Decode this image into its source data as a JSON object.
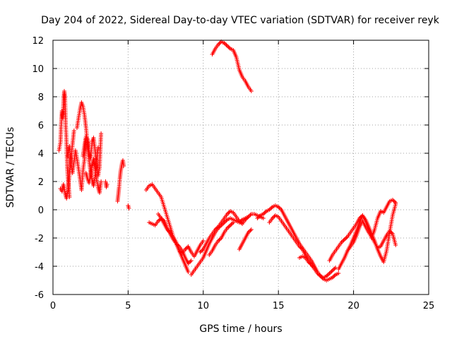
{
  "chart_data": {
    "type": "scatter",
    "title": "Day 204 of 2022, Sidereal Day-to-day VTEC variation (SDTVAR) for receiver reyk",
    "xlabel": "GPS time / hours",
    "ylabel": "SDTVAR / TECUs",
    "xlim": [
      0,
      25
    ],
    "ylim": [
      -6,
      12
    ],
    "xticks": [
      0,
      5,
      10,
      15,
      20,
      25
    ],
    "yticks": [
      -6,
      -4,
      -2,
      0,
      2,
      4,
      6,
      8,
      10,
      12
    ],
    "grid": true,
    "marker": "+",
    "series": [
      {
        "name": "SDTVAR",
        "color": "#ff0000",
        "segments": [
          {
            "x": [
              0.4,
              0.5,
              0.55,
              0.6,
              0.65,
              0.7,
              0.75,
              0.8,
              0.85,
              0.9,
              0.95,
              1.0,
              1.05,
              1.1
            ],
            "y": [
              4.2,
              4.8,
              6.2,
              7.0,
              6.5,
              7.6,
              8.4,
              7.9,
              6.0,
              4.8,
              3.0,
              2.2,
              1.6,
              0.9
            ]
          },
          {
            "x": [
              0.5,
              0.6,
              0.7,
              0.8,
              0.9,
              1.0,
              1.1,
              1.2,
              1.3,
              1.4
            ],
            "y": [
              1.5,
              1.3,
              1.8,
              1.2,
              0.8,
              1.4,
              2.5,
              3.5,
              4.6,
              5.6
            ]
          },
          {
            "x": [
              1.0,
              1.1,
              1.2,
              1.3,
              1.4,
              1.5,
              1.6,
              1.7,
              1.8,
              1.9,
              2.0,
              2.1,
              2.2
            ],
            "y": [
              3.8,
              4.5,
              3.2,
              2.6,
              3.4,
              4.2,
              3.6,
              2.9,
              2.2,
              1.4,
              2.8,
              3.6,
              5.0
            ]
          },
          {
            "x": [
              1.6,
              1.7,
              1.8,
              1.9,
              2.0,
              2.1,
              2.2,
              2.3,
              2.4,
              2.5,
              2.6,
              2.7,
              2.8,
              2.9,
              3.0
            ],
            "y": [
              5.8,
              6.5,
              7.1,
              7.6,
              7.3,
              6.7,
              5.8,
              4.6,
              3.5,
              2.7,
              2.1,
              1.7,
              2.3,
              3.4,
              4.4
            ]
          },
          {
            "x": [
              2.0,
              2.1,
              2.2,
              2.3,
              2.4,
              2.5,
              2.6,
              2.7,
              2.8,
              2.9,
              3.0,
              3.1,
              3.2
            ],
            "y": [
              3.8,
              4.6,
              5.2,
              5.0,
              4.1,
              3.6,
              4.8,
              5.1,
              4.2,
              3.2,
              2.4,
              3.0,
              5.4
            ]
          },
          {
            "x": [
              2.2,
              2.3,
              2.4,
              2.5,
              2.6,
              2.7,
              2.8,
              2.9,
              3.0,
              3.1,
              3.2
            ],
            "y": [
              2.6,
              2.2,
              1.9,
              2.4,
              3.1,
              3.6,
              2.9,
              2.2,
              1.6,
              1.2,
              2.0
            ]
          },
          {
            "x": [
              3.5,
              3.55,
              3.6
            ],
            "y": [
              2.0,
              1.6,
              1.8
            ]
          },
          {
            "x": [
              4.3,
              4.35,
              4.4,
              4.45,
              4.5,
              4.55,
              4.6,
              4.65,
              4.7
            ],
            "y": [
              0.6,
              1.1,
              1.6,
              2.2,
              2.7,
              3.0,
              3.3,
              3.5,
              3.1
            ]
          },
          {
            "x": [
              5.0,
              5.05
            ],
            "y": [
              0.3,
              0.1
            ]
          },
          {
            "x": [
              6.2,
              6.4,
              6.6,
              6.8,
              7.0,
              7.2,
              7.4,
              7.6,
              7.8,
              8.0,
              8.2,
              8.4,
              8.6,
              8.8,
              9.0
            ],
            "y": [
              1.4,
              1.7,
              1.8,
              1.5,
              1.2,
              0.9,
              0.2,
              -0.5,
              -1.2,
              -1.9,
              -2.3,
              -2.9,
              -3.4,
              -3.9,
              -4.4
            ]
          },
          {
            "x": [
              6.4,
              6.6,
              6.8,
              7.0,
              7.2,
              7.4,
              7.6,
              7.8,
              8.0,
              8.2,
              8.4,
              8.6,
              8.8,
              9.0,
              9.2,
              9.4,
              9.6,
              9.8,
              10.0
            ],
            "y": [
              -0.9,
              -1.0,
              -1.1,
              -0.8,
              -0.6,
              -1.0,
              -1.4,
              -1.6,
              -2.0,
              -2.4,
              -2.9,
              -3.1,
              -2.8,
              -2.6,
              -3.0,
              -3.3,
              -2.9,
              -2.5,
              -2.2
            ]
          },
          {
            "x": [
              7.0,
              7.2,
              7.4,
              7.6,
              7.8,
              8.0,
              8.2,
              8.4,
              8.6,
              8.8,
              9.0,
              9.2
            ],
            "y": [
              -0.3,
              -0.6,
              -0.8,
              -1.3,
              -1.7,
              -2.1,
              -2.4,
              -2.6,
              -2.9,
              -3.4,
              -3.8,
              -3.6
            ]
          },
          {
            "x": [
              9.2,
              9.4,
              9.6,
              9.8,
              10.0,
              10.2,
              10.4,
              10.6,
              10.8,
              11.0,
              11.2,
              11.4,
              11.6,
              11.8,
              12.0,
              12.2,
              12.4,
              12.6,
              12.8,
              13.0,
              13.2,
              13.4,
              13.6,
              13.8,
              14.0
            ],
            "y": [
              -4.6,
              -4.3,
              -4.0,
              -3.7,
              -3.4,
              -2.9,
              -2.4,
              -2.0,
              -1.6,
              -1.3,
              -1.1,
              -0.9,
              -0.7,
              -0.6,
              -0.7,
              -0.8,
              -0.9,
              -0.7,
              -0.6,
              -0.5,
              -0.3,
              -0.3,
              -0.4,
              -0.5,
              -0.6
            ]
          },
          {
            "x": [
              9.8,
              10.0,
              10.2,
              10.4,
              10.6,
              10.8,
              11.0,
              11.2,
              11.4,
              11.6,
              11.8,
              12.0,
              12.2,
              12.4,
              12.6,
              12.8,
              13.0
            ],
            "y": [
              -3.0,
              -2.8,
              -2.4,
              -2.0,
              -1.7,
              -1.4,
              -1.2,
              -0.9,
              -0.6,
              -0.3,
              -0.1,
              -0.2,
              -0.5,
              -0.8,
              -1.0,
              -0.7,
              -0.5
            ]
          },
          {
            "x": [
              10.4,
              10.6,
              10.8,
              11.0,
              11.2,
              11.4,
              11.6,
              11.8,
              12.0
            ],
            "y": [
              -3.2,
              -2.9,
              -2.5,
              -2.2,
              -2.0,
              -1.6,
              -1.3,
              -1.1,
              -0.9
            ]
          },
          {
            "x": [
              12.4,
              12.6,
              12.8,
              13.0,
              13.2
            ],
            "y": [
              -2.8,
              -2.4,
              -2.0,
              -1.6,
              -1.4
            ]
          },
          {
            "x": [
              10.6,
              10.8,
              11.0,
              11.2,
              11.4,
              11.6,
              11.8,
              12.0,
              12.2,
              12.4,
              12.6,
              12.8,
              13.0,
              13.2
            ],
            "y": [
              11.0,
              11.4,
              11.7,
              11.9,
              11.8,
              11.6,
              11.4,
              11.3,
              10.8,
              9.9,
              9.4,
              9.1,
              8.7,
              8.4
            ]
          },
          {
            "x": [
              13.6,
              13.8,
              14.0,
              14.2,
              14.4,
              14.6,
              14.8,
              15.0,
              15.2,
              15.4,
              15.6,
              15.8,
              16.0,
              16.2,
              16.4,
              16.6,
              16.8,
              17.0,
              17.2,
              17.4,
              17.6,
              17.8,
              18.0,
              18.2,
              18.4,
              18.6,
              18.8,
              19.0
            ],
            "y": [
              -0.6,
              -0.4,
              -0.3,
              -0.1,
              0.0,
              0.2,
              0.3,
              0.2,
              0.0,
              -0.4,
              -0.8,
              -1.2,
              -1.6,
              -2.0,
              -2.4,
              -2.7,
              -3.0,
              -3.3,
              -3.6,
              -4.0,
              -4.4,
              -4.7,
              -4.9,
              -5.0,
              -4.9,
              -4.8,
              -4.6,
              -4.5
            ]
          },
          {
            "x": [
              14.4,
              14.6,
              14.8,
              15.0,
              15.2,
              15.4,
              15.6,
              15.8,
              16.0,
              16.2,
              16.4,
              16.6,
              16.8,
              17.0,
              17.2,
              17.4,
              17.6,
              17.8,
              18.0,
              18.2,
              18.4,
              18.6,
              18.8
            ],
            "y": [
              -0.9,
              -0.6,
              -0.4,
              -0.5,
              -0.8,
              -1.1,
              -1.4,
              -1.7,
              -2.0,
              -2.3,
              -2.6,
              -2.8,
              -3.2,
              -3.6,
              -3.9,
              -4.2,
              -4.5,
              -4.7,
              -4.8,
              -4.7,
              -4.5,
              -4.3,
              -4.1
            ]
          },
          {
            "x": [
              16.4,
              16.6,
              16.8,
              17.0,
              17.2,
              17.4
            ],
            "y": [
              -3.4,
              -3.3,
              -3.4,
              -3.7,
              -3.9,
              -4.1
            ]
          },
          {
            "x": [
              18.4,
              18.6,
              18.8,
              19.0,
              19.2,
              19.4,
              19.6,
              19.8,
              20.0,
              20.2,
              20.4,
              20.6,
              20.8,
              21.0,
              21.2,
              21.4,
              21.6,
              21.8,
              22.0,
              22.2,
              22.4,
              22.6,
              22.8
            ],
            "y": [
              -3.6,
              -3.2,
              -2.9,
              -2.6,
              -2.3,
              -2.1,
              -1.9,
              -1.6,
              -1.3,
              -1.0,
              -0.6,
              -0.4,
              -0.7,
              -1.2,
              -1.7,
              -2.2,
              -2.8,
              -3.3,
              -3.7,
              -2.9,
              -1.6,
              -0.4,
              0.4
            ]
          },
          {
            "x": [
              19.0,
              19.2,
              19.4,
              19.6,
              19.8,
              20.0,
              20.2,
              20.4,
              20.6,
              20.8,
              21.0,
              21.2,
              21.4,
              21.6,
              21.8,
              22.0,
              22.2,
              22.4,
              22.6,
              22.8
            ],
            "y": [
              -4.2,
              -3.8,
              -3.4,
              -2.9,
              -2.5,
              -2.0,
              -1.5,
              -0.9,
              -0.4,
              -0.8,
              -1.4,
              -2.0,
              -1.4,
              -0.6,
              -0.1,
              -0.2,
              0.2,
              0.6,
              0.7,
              0.5
            ]
          },
          {
            "x": [
              19.6,
              19.8,
              20.0,
              20.2,
              20.4,
              20.6,
              20.8,
              21.0,
              21.2,
              21.4,
              21.6,
              21.8,
              22.0,
              22.2,
              22.4,
              22.6,
              22.8
            ],
            "y": [
              -2.9,
              -2.6,
              -2.3,
              -1.8,
              -1.2,
              -0.8,
              -1.2,
              -1.6,
              -1.9,
              -2.3,
              -2.7,
              -2.6,
              -2.2,
              -1.8,
              -1.5,
              -1.7,
              -2.5
            ]
          }
        ]
      }
    ]
  }
}
